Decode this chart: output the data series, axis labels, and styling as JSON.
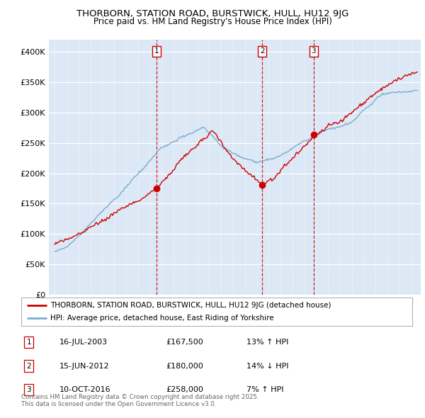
{
  "title": "THORBORN, STATION ROAD, BURSTWICK, HULL, HU12 9JG",
  "subtitle": "Price paid vs. HM Land Registry's House Price Index (HPI)",
  "legend_line1": "THORBORN, STATION ROAD, BURSTWICK, HULL, HU12 9JG (detached house)",
  "legend_line2": "HPI: Average price, detached house, East Riding of Yorkshire",
  "sales": [
    {
      "num": 1,
      "year": 2003.54,
      "price": 167500,
      "label": "16-JUL-2003",
      "amount": "£167,500",
      "hpi_note": "13% ↑ HPI"
    },
    {
      "num": 2,
      "year": 2012.45,
      "price": 180000,
      "label": "15-JUN-2012",
      "amount": "£180,000",
      "hpi_note": "14% ↓ HPI"
    },
    {
      "num": 3,
      "year": 2016.78,
      "price": 258000,
      "label": "10-OCT-2016",
      "amount": "£258,000",
      "hpi_note": "7% ↑ HPI"
    }
  ],
  "footer": "Contains HM Land Registry data © Crown copyright and database right 2025.\nThis data is licensed under the Open Government Licence v3.0.",
  "red_color": "#cc0000",
  "blue_color": "#7aadcf",
  "background_color": "#dce8f5",
  "ylim": [
    0,
    420000
  ],
  "xlim": [
    1994.5,
    2025.8
  ]
}
